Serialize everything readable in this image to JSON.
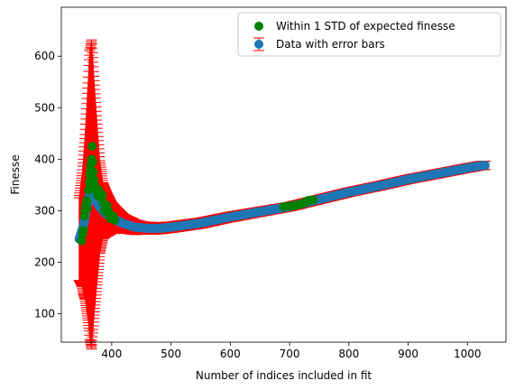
{
  "chart_data": {
    "type": "scatter",
    "title": "",
    "xlabel": "Number of indices included in fit",
    "ylabel": "Finesse",
    "xlim": [
      315,
      1065
    ],
    "ylim": [
      45,
      695
    ],
    "xticks": [
      400,
      500,
      600,
      700,
      800,
      900,
      1000
    ],
    "yticks": [
      100,
      200,
      300,
      400,
      500,
      600
    ],
    "grid": false,
    "legend_position": "top-right",
    "colors": {
      "data": "#1f77b4",
      "errorbar": "#ff0000",
      "within": "#008000"
    },
    "series": [
      {
        "name": "Data with error bars",
        "marker": "circle",
        "curve_points": [
          [
            345,
            245
          ],
          [
            352,
            270
          ],
          [
            357,
            300
          ],
          [
            362,
            330
          ],
          [
            367,
            332
          ],
          [
            372,
            322
          ],
          [
            378,
            310
          ],
          [
            385,
            300
          ],
          [
            395,
            290
          ],
          [
            405,
            283
          ],
          [
            420,
            275
          ],
          [
            440,
            268
          ],
          [
            460,
            266
          ],
          [
            480,
            266
          ],
          [
            500,
            268
          ],
          [
            550,
            276
          ],
          [
            600,
            288
          ],
          [
            650,
            298
          ],
          [
            700,
            308
          ],
          [
            750,
            322
          ],
          [
            800,
            336
          ],
          [
            850,
            348
          ],
          [
            900,
            361
          ],
          [
            950,
            372
          ],
          [
            1000,
            383
          ],
          [
            1025,
            388
          ]
        ],
        "error_points": [
          [
            345,
            80
          ],
          [
            350,
            110
          ],
          [
            355,
            160
          ],
          [
            360,
            230
          ],
          [
            363,
            280
          ],
          [
            366,
            300
          ],
          [
            370,
            235
          ],
          [
            375,
            160
          ],
          [
            380,
            90
          ],
          [
            385,
            55
          ],
          [
            390,
            45
          ],
          [
            400,
            30
          ],
          [
            420,
            18
          ],
          [
            450,
            12
          ],
          [
            500,
            10
          ],
          [
            600,
            9
          ],
          [
            700,
            8
          ],
          [
            800,
            8
          ],
          [
            900,
            8
          ],
          [
            1030,
            8
          ]
        ],
        "x_range": [
          345,
          1030
        ]
      },
      {
        "name": "Within 1 STD of expected finesse",
        "marker": "circle",
        "points": [
          [
            349,
            242
          ],
          [
            351,
            255
          ],
          [
            352,
            262
          ],
          [
            354,
            290
          ],
          [
            355,
            300
          ],
          [
            356,
            310
          ],
          [
            358,
            320
          ],
          [
            359,
            305
          ],
          [
            361,
            340
          ],
          [
            362,
            355
          ],
          [
            363,
            370
          ],
          [
            364,
            380
          ],
          [
            365,
            390
          ],
          [
            366,
            400
          ],
          [
            367,
            425
          ],
          [
            368,
            395
          ],
          [
            369,
            375
          ],
          [
            370,
            360
          ],
          [
            371,
            350
          ],
          [
            372,
            345
          ],
          [
            374,
            340
          ],
          [
            376,
            330
          ],
          [
            378,
            340
          ],
          [
            380,
            335
          ],
          [
            382,
            325
          ],
          [
            384,
            330
          ],
          [
            386,
            315
          ],
          [
            388,
            300
          ],
          [
            390,
            305
          ],
          [
            392,
            310
          ],
          [
            394,
            300
          ],
          [
            396,
            290
          ],
          [
            398,
            285
          ],
          [
            400,
            285
          ],
          [
            402,
            290
          ],
          [
            405,
            282
          ],
          [
            690,
            308
          ],
          [
            695,
            308
          ],
          [
            700,
            309
          ],
          [
            705,
            310
          ],
          [
            710,
            310
          ],
          [
            715,
            312
          ],
          [
            720,
            313
          ],
          [
            725,
            315
          ],
          [
            728,
            318
          ],
          [
            732,
            320
          ],
          [
            736,
            320
          ],
          [
            740,
            321
          ]
        ]
      }
    ]
  }
}
